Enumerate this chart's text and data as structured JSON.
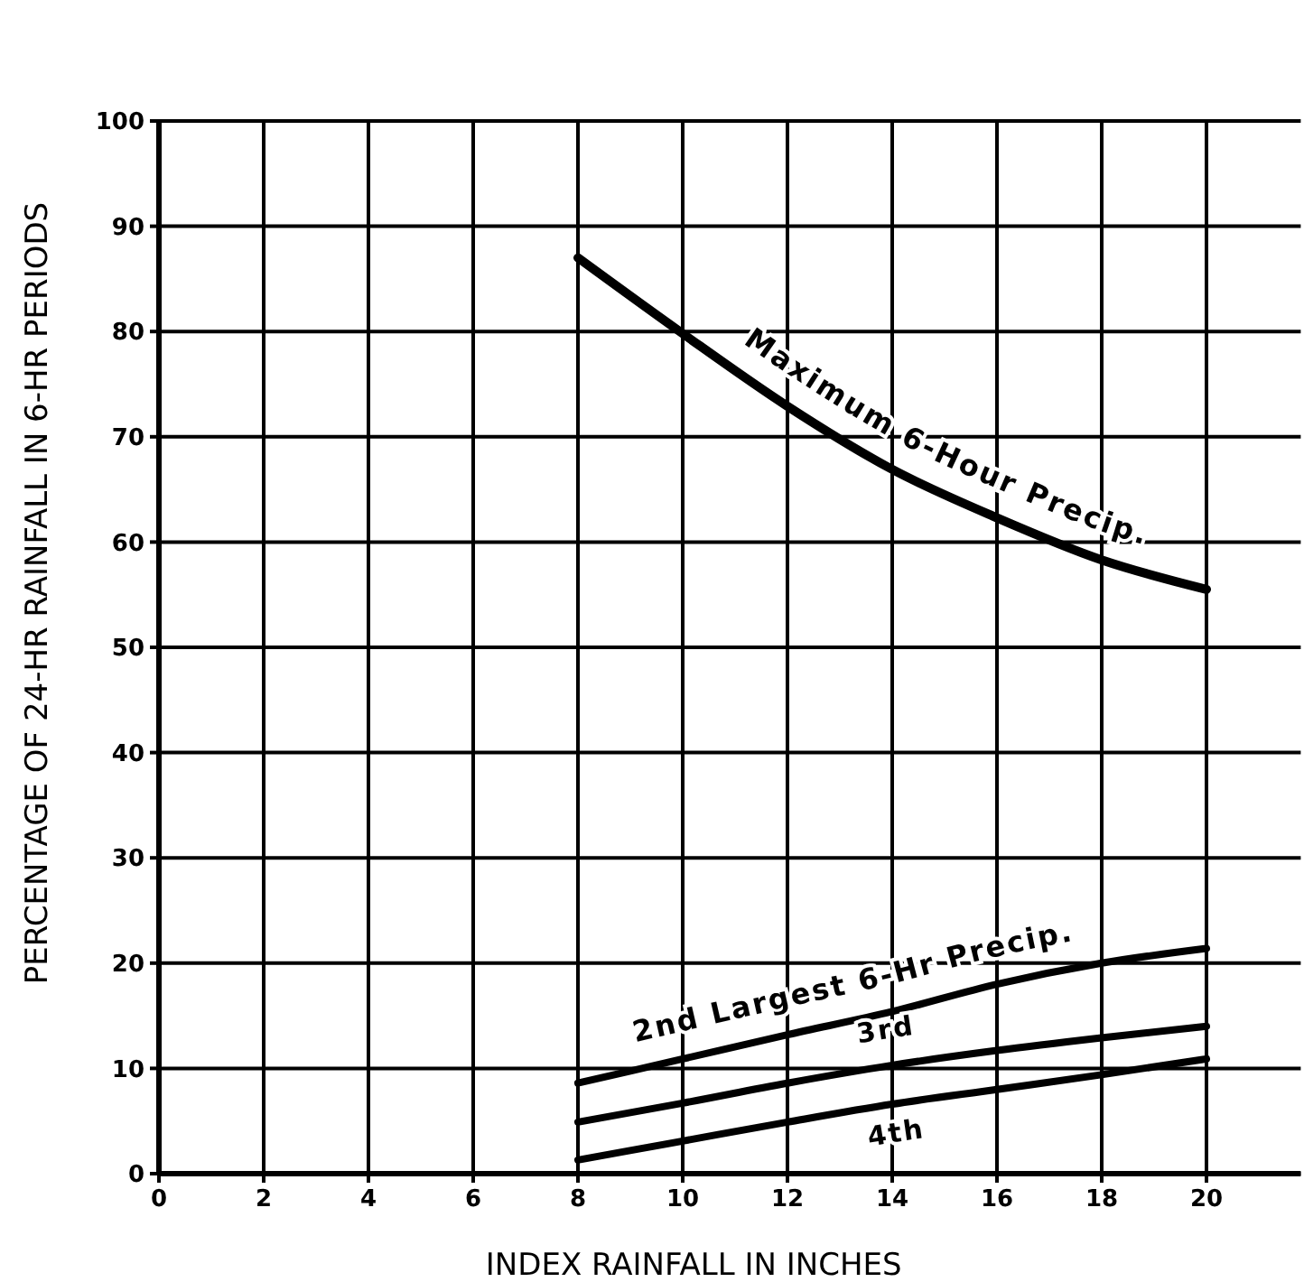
{
  "chart_data": {
    "type": "line",
    "xlabel": "INDEX RAINFALL IN INCHES",
    "ylabel": "PERCENTAGE OF 24-HR RAINFALL IN 6-HR PERIODS",
    "x": [
      8,
      10,
      12,
      14,
      16,
      18,
      20
    ],
    "series": [
      {
        "name": "Maximum 6-Hour Precip.",
        "color": "#000000",
        "values": [
          87,
          79.8,
          72.9,
          66.9,
          62.3,
          58.3,
          55.5
        ]
      },
      {
        "name": "2nd Largest 6-Hr Precip.",
        "color": "#000000",
        "values": [
          8.6,
          10.9,
          13.2,
          15.4,
          18,
          20,
          21.4
        ]
      },
      {
        "name": "3rd",
        "color": "#000000",
        "values": [
          4.9,
          6.7,
          8.6,
          10.3,
          11.7,
          12.9,
          14
        ]
      },
      {
        "name": "4th",
        "color": "#000000",
        "values": [
          1.3,
          3.1,
          4.9,
          6.6,
          8,
          9.4,
          10.9
        ]
      }
    ],
    "xlim": [
      0,
      21.8
    ],
    "xticks": [
      0,
      2,
      4,
      6,
      8,
      10,
      12,
      14,
      16,
      18,
      20
    ],
    "ylim": [
      0,
      100
    ],
    "yticks": [
      0,
      10,
      20,
      30,
      40,
      50,
      60,
      70,
      80,
      90,
      100
    ],
    "grid": true,
    "marker": "none",
    "line_style": "solid"
  }
}
